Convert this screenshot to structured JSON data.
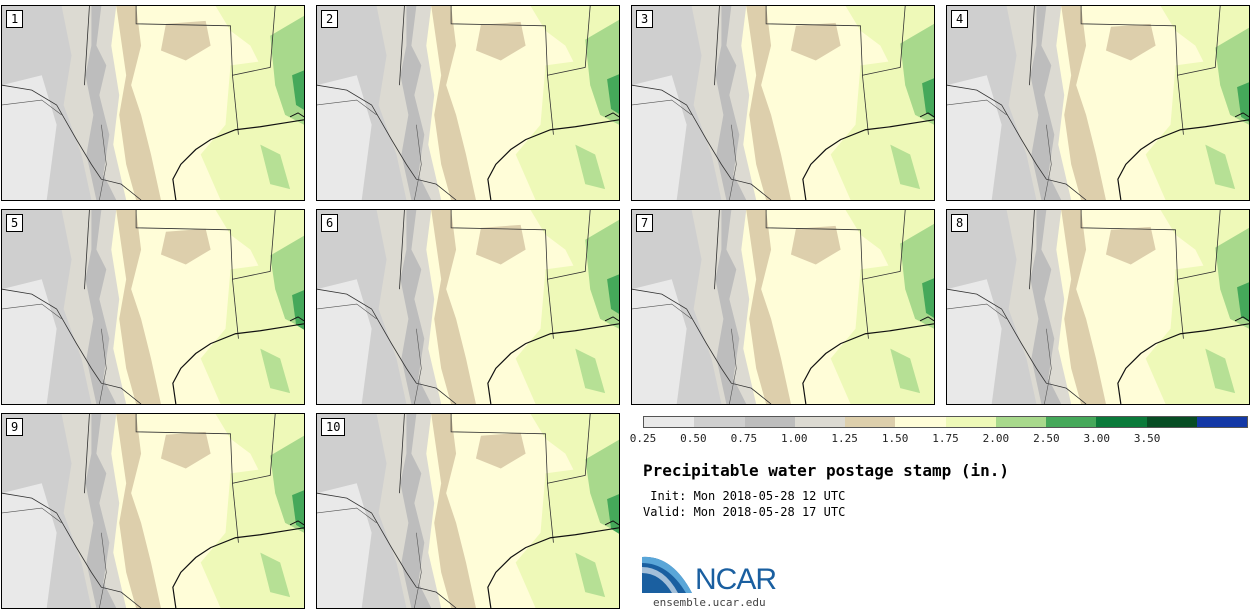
{
  "panels": [
    "1",
    "2",
    "3",
    "4",
    "5",
    "6",
    "7",
    "8",
    "9",
    "10"
  ],
  "colorbar": {
    "colors": [
      "#e9e9e9",
      "#cfcfcf",
      "#bdbdbd",
      "#dcdad2",
      "#ddcfac",
      "#fffdd8",
      "#eef9b8",
      "#a8d98c",
      "#45a85a",
      "#0a7a3a",
      "#074d24",
      "#1338a6"
    ],
    "labels": [
      "0.25",
      "0.50",
      "0.75",
      "1.00",
      "1.25",
      "1.50",
      "1.75",
      "2.00",
      "2.50",
      "3.00",
      "3.50"
    ]
  },
  "title": "Precipitable water postage stamp (in.)",
  "init": " Init: Mon 2018-05-28 12 UTC",
  "valid": "Valid: Mon 2018-05-28 17 UTC",
  "logo_text": "NCAR",
  "site": "ensemble.ucar.edu"
}
